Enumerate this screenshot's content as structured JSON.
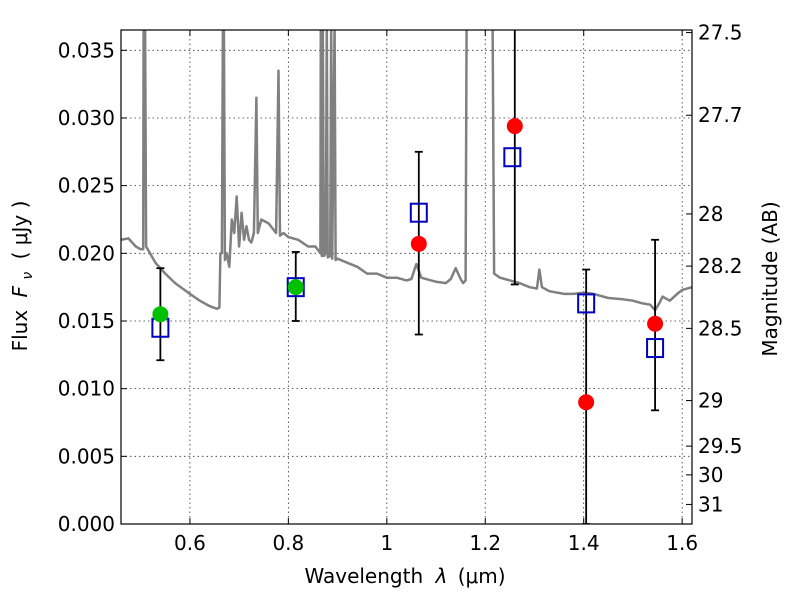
{
  "chart_data": {
    "type": "scatter",
    "xlabel_text": "Wavelength",
    "xlabel_symbol": "λ",
    "xlabel_unit": "(μm)",
    "ylabel_text": "Flux",
    "ylabel_symbol": "F",
    "ylabel_sub": "ν",
    "ylabel_unit": "( μJy )",
    "y2label": "Magnitude (AB)",
    "xlim": [
      0.46,
      1.62
    ],
    "ylim": [
      0.0,
      0.0365
    ],
    "grid": true,
    "x_ticks": [
      {
        "value": 0.6,
        "label": "0.6"
      },
      {
        "value": 0.8,
        "label": "0.8"
      },
      {
        "value": 1.0,
        "label": "1"
      },
      {
        "value": 1.2,
        "label": "1.2"
      },
      {
        "value": 1.4,
        "label": "1.4"
      },
      {
        "value": 1.6,
        "label": "1.6"
      }
    ],
    "y_ticks": [
      {
        "value": 0.0,
        "label": "0.000"
      },
      {
        "value": 0.005,
        "label": "0.005"
      },
      {
        "value": 0.01,
        "label": "0.010"
      },
      {
        "value": 0.015,
        "label": "0.015"
      },
      {
        "value": 0.02,
        "label": "0.020"
      },
      {
        "value": 0.025,
        "label": "0.025"
      },
      {
        "value": 0.03,
        "label": "0.030"
      },
      {
        "value": 0.035,
        "label": "0.035"
      }
    ],
    "mag_ticks": [
      {
        "mag": 27.5,
        "label": "27.5"
      },
      {
        "mag": 27.7,
        "label": "27.7"
      },
      {
        "mag": 28.0,
        "label": "28"
      },
      {
        "mag": 28.2,
        "label": "28.2"
      },
      {
        "mag": 28.5,
        "label": "28.5"
      },
      {
        "mag": 29.0,
        "label": "29"
      },
      {
        "mag": 29.5,
        "label": "29.5"
      },
      {
        "mag": 30.0,
        "label": "30"
      },
      {
        "mag": 31.0,
        "label": "31"
      }
    ],
    "colors": {
      "template": "#808080",
      "model_box": "#0000c0",
      "obs_red": "#ff0000",
      "obs_green": "#00c000",
      "errorbar": "#000000"
    },
    "errorbars": [
      {
        "x": 0.54,
        "lo": 0.0121,
        "hi": 0.0189
      },
      {
        "x": 0.815,
        "lo": 0.015,
        "hi": 0.0201
      },
      {
        "x": 1.065,
        "lo": 0.014,
        "hi": 0.0275
      },
      {
        "x": 1.26,
        "lo": 0.0177,
        "hi": 0.037
      },
      {
        "x": 1.405,
        "lo": 0.0,
        "hi": 0.0188
      },
      {
        "x": 1.545,
        "lo": 0.0084,
        "hi": 0.021
      }
    ],
    "model_points": [
      {
        "x": 0.54,
        "y": 0.0145
      },
      {
        "x": 0.815,
        "y": 0.0175
      },
      {
        "x": 1.065,
        "y": 0.023
      },
      {
        "x": 1.255,
        "y": 0.0271
      },
      {
        "x": 1.405,
        "y": 0.0163
      },
      {
        "x": 1.545,
        "y": 0.013
      }
    ],
    "observed_points": [
      {
        "x": 0.54,
        "y": 0.0155,
        "color": "green"
      },
      {
        "x": 0.815,
        "y": 0.0175,
        "color": "green"
      },
      {
        "x": 1.065,
        "y": 0.0207,
        "color": "red"
      },
      {
        "x": 1.26,
        "y": 0.0294,
        "color": "red"
      },
      {
        "x": 1.405,
        "y": 0.009,
        "color": "red"
      },
      {
        "x": 1.545,
        "y": 0.0148,
        "color": "red"
      }
    ],
    "template_spectrum": [
      [
        0.46,
        0.021
      ],
      [
        0.475,
        0.0211
      ],
      [
        0.49,
        0.0205
      ],
      [
        0.5,
        0.0203
      ],
      [
        0.505,
        0.0203
      ],
      [
        0.506,
        0.037
      ],
      [
        0.509,
        0.037
      ],
      [
        0.511,
        0.0205
      ],
      [
        0.53,
        0.0193
      ],
      [
        0.55,
        0.0185
      ],
      [
        0.57,
        0.0178
      ],
      [
        0.6,
        0.017
      ],
      [
        0.62,
        0.0165
      ],
      [
        0.64,
        0.0161
      ],
      [
        0.655,
        0.0159
      ],
      [
        0.66,
        0.016
      ],
      [
        0.662,
        0.02
      ],
      [
        0.665,
        0.02
      ],
      [
        0.667,
        0.037
      ],
      [
        0.669,
        0.037
      ],
      [
        0.671,
        0.0195
      ],
      [
        0.675,
        0.02
      ],
      [
        0.68,
        0.019
      ],
      [
        0.685,
        0.0225
      ],
      [
        0.69,
        0.0215
      ],
      [
        0.695,
        0.0242
      ],
      [
        0.7,
        0.0205
      ],
      [
        0.705,
        0.023
      ],
      [
        0.71,
        0.021
      ],
      [
        0.715,
        0.022
      ],
      [
        0.72,
        0.021
      ],
      [
        0.725,
        0.0208
      ],
      [
        0.73,
        0.0215
      ],
      [
        0.735,
        0.0315
      ],
      [
        0.738,
        0.0215
      ],
      [
        0.745,
        0.0225
      ],
      [
        0.76,
        0.0222
      ],
      [
        0.775,
        0.0215
      ],
      [
        0.78,
        0.0335
      ],
      [
        0.783,
        0.0213
      ],
      [
        0.79,
        0.0215
      ],
      [
        0.8,
        0.0212
      ],
      [
        0.82,
        0.021
      ],
      [
        0.84,
        0.0205
      ],
      [
        0.855,
        0.0205
      ],
      [
        0.865,
        0.02
      ],
      [
        0.866,
        0.037
      ],
      [
        0.868,
        0.0198
      ],
      [
        0.87,
        0.037
      ],
      [
        0.872,
        0.0198
      ],
      [
        0.876,
        0.02
      ],
      [
        0.878,
        0.037
      ],
      [
        0.88,
        0.0197
      ],
      [
        0.885,
        0.0198
      ],
      [
        0.887,
        0.037
      ],
      [
        0.889,
        0.0196
      ],
      [
        0.894,
        0.037
      ],
      [
        0.896,
        0.0195
      ],
      [
        0.9,
        0.0196
      ],
      [
        0.92,
        0.0193
      ],
      [
        0.94,
        0.019
      ],
      [
        0.96,
        0.0185
      ],
      [
        0.98,
        0.0185
      ],
      [
        1.0,
        0.0182
      ],
      [
        1.02,
        0.0182
      ],
      [
        1.04,
        0.018
      ],
      [
        1.05,
        0.0181
      ],
      [
        1.06,
        0.0192
      ],
      [
        1.07,
        0.0182
      ],
      [
        1.09,
        0.018
      ],
      [
        1.1,
        0.0179
      ],
      [
        1.12,
        0.0178
      ],
      [
        1.13,
        0.0181
      ],
      [
        1.14,
        0.0189
      ],
      [
        1.15,
        0.0181
      ],
      [
        1.155,
        0.0178
      ],
      [
        1.16,
        0.018
      ],
      [
        1.162,
        0.037
      ],
      [
        1.215,
        0.037
      ],
      [
        1.218,
        0.0185
      ],
      [
        1.23,
        0.0182
      ],
      [
        1.25,
        0.018
      ],
      [
        1.27,
        0.0178
      ],
      [
        1.29,
        0.0175
      ],
      [
        1.305,
        0.0174
      ],
      [
        1.31,
        0.0188
      ],
      [
        1.315,
        0.0175
      ],
      [
        1.33,
        0.0172
      ],
      [
        1.36,
        0.017
      ],
      [
        1.38,
        0.017
      ],
      [
        1.4,
        0.0171
      ],
      [
        1.42,
        0.017
      ],
      [
        1.45,
        0.0167
      ],
      [
        1.48,
        0.0166
      ],
      [
        1.5,
        0.0165
      ],
      [
        1.52,
        0.0163
      ],
      [
        1.535,
        0.0162
      ],
      [
        1.545,
        0.0158
      ],
      [
        1.555,
        0.0164
      ],
      [
        1.56,
        0.0168
      ],
      [
        1.575,
        0.0165
      ],
      [
        1.59,
        0.017
      ],
      [
        1.6,
        0.0173
      ],
      [
        1.62,
        0.0175
      ]
    ]
  }
}
